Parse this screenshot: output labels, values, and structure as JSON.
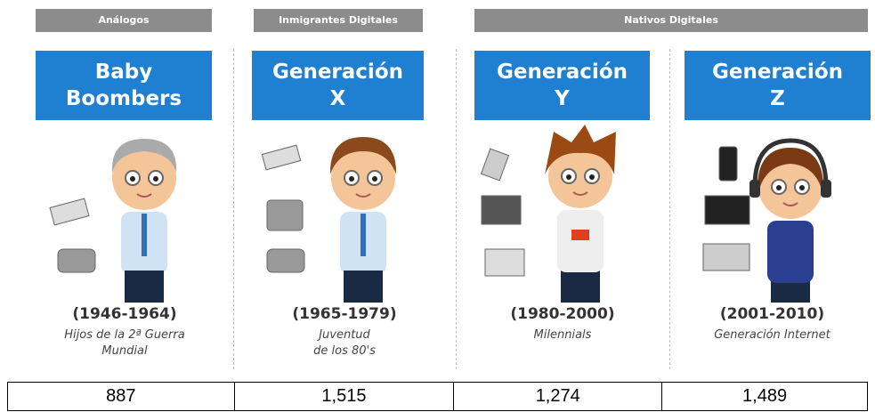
{
  "groups": [
    {
      "label": "Análogos"
    },
    {
      "label": "Inmigrantes Digitales"
    },
    {
      "label": "Nativos Digitales"
    }
  ],
  "generations": [
    {
      "title_lines": [
        "Baby",
        "Boombers"
      ],
      "years": "(1946-1964)",
      "description_lines": [
        "Hijos de la 2ª Guerra",
        "Mundial"
      ]
    },
    {
      "title_lines": [
        "Generación",
        "X"
      ],
      "years": "(1965-1979)",
      "description_lines": [
        "Juventud",
        "de los 80's"
      ]
    },
    {
      "title_lines": [
        "Generación",
        "Y"
      ],
      "years": "(1980-2000)",
      "description_lines": [
        "Milennials"
      ]
    },
    {
      "title_lines": [
        "Generación",
        "Z"
      ],
      "years": "(2001-2010)",
      "description_lines": [
        "Generación Internet"
      ]
    }
  ],
  "table": {
    "rows": [
      [
        "887",
        "1,515",
        "1,274",
        "1,489"
      ]
    ]
  }
}
